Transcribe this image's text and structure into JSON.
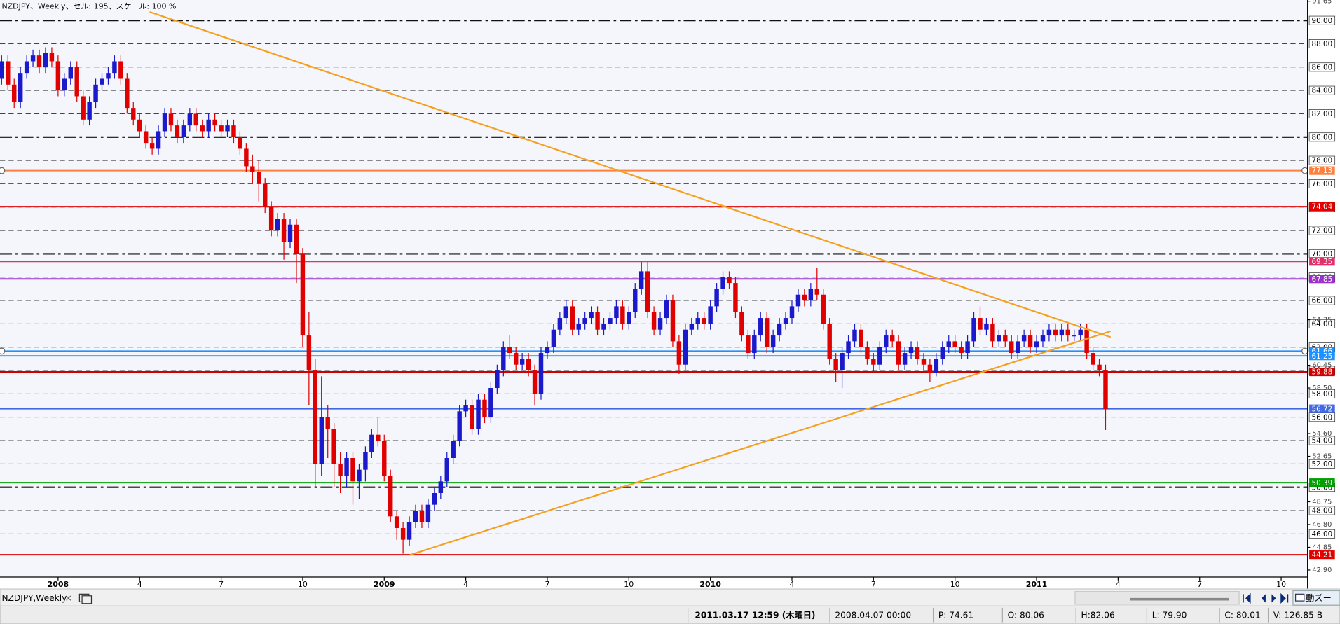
{
  "chart_data": {
    "type": "candlestick",
    "caption": "NZDJPY、Weekly、セル: 195、スケール: 100 %",
    "up_color": "#1a1acc",
    "down_color": "#e00000",
    "xlim": [
      -9.26,
      199.2
    ],
    "ylim": [
      42.3,
      91.75
    ],
    "xticks": [
      {
        "value": 0,
        "label": "2008"
      },
      {
        "value": 13,
        "label": "4"
      },
      {
        "value": 26,
        "label": "7"
      },
      {
        "value": 39,
        "label": "10"
      },
      {
        "value": 52,
        "label": "2009"
      },
      {
        "value": 65,
        "label": "4"
      },
      {
        "value": 78,
        "label": "7"
      },
      {
        "value": 91,
        "label": "10"
      },
      {
        "value": 104,
        "label": "2010"
      },
      {
        "value": 117,
        "label": "4"
      },
      {
        "value": 130,
        "label": "7"
      },
      {
        "value": 143,
        "label": "10"
      },
      {
        "value": 156,
        "label": "2011"
      },
      {
        "value": 169,
        "label": "4"
      },
      {
        "value": 182,
        "label": "7"
      },
      {
        "value": 195,
        "label": "10"
      }
    ],
    "yticks": [
      {
        "value": 46,
        "label": "46.00"
      },
      {
        "value": 48,
        "label": "48.00"
      },
      {
        "value": 50,
        "label": "50.00"
      },
      {
        "value": 52,
        "label": "52.00"
      },
      {
        "value": 54,
        "label": "54.00"
      },
      {
        "value": 56,
        "label": "56.00"
      },
      {
        "value": 58,
        "label": "58.00"
      },
      {
        "value": 60,
        "label": "60.00"
      },
      {
        "value": 62,
        "label": "62.00"
      },
      {
        "value": 64,
        "label": "64.00"
      },
      {
        "value": 66,
        "label": "66.00"
      },
      {
        "value": 68,
        "label": "68.00"
      },
      {
        "value": 70,
        "label": "70.00"
      },
      {
        "value": 72,
        "label": "72.00"
      },
      {
        "value": 74,
        "label": "74.00"
      },
      {
        "value": 76,
        "label": "76.00"
      },
      {
        "value": 78,
        "label": "78.00"
      },
      {
        "value": 80,
        "label": "80.00"
      },
      {
        "value": 82,
        "label": "82.00"
      },
      {
        "value": 84,
        "label": "84.00"
      },
      {
        "value": 86,
        "label": "86.00"
      },
      {
        "value": 88,
        "label": "88.00"
      },
      {
        "value": 90,
        "label": "90.00"
      }
    ],
    "minor_yticks": [
      91.65,
      64.35,
      60.45,
      {
        "value": 58.5,
        "label": "58.50"
      },
      {
        "value": 54.6,
        "label": "54.60"
      },
      52.65,
      48.75,
      {
        "value": 46.8,
        "label": "46.80"
      },
      44.85,
      {
        "value": 42.9,
        "label": "42.90"
      }
    ],
    "major_levels": [
      50,
      70,
      80,
      90
    ],
    "grid": true,
    "hlines": [
      {
        "value": 77.13,
        "color": "#ff7f3f",
        "handles": true
      },
      {
        "value": 74.04,
        "color": "#e00000"
      },
      {
        "value": 69.35,
        "color": "#e0306a"
      },
      {
        "value": 67.85,
        "color": "#9932cc"
      },
      {
        "value": 61.66,
        "color": "#1e90ff",
        "handles": true
      },
      {
        "value": 61.25,
        "color": "#1e90ff"
      },
      {
        "value": 59.88,
        "color": "#d00000"
      },
      {
        "value": 56.72,
        "color": "#4169e1"
      },
      {
        "value": 50.39,
        "color": "#00a000"
      },
      {
        "value": 44.21,
        "color": "#e00000"
      }
    ],
    "trendlines": [
      {
        "color": "#f5a020",
        "x": [
          14.6,
          167.8
        ],
        "y": [
          90.73,
          62.86
        ]
      },
      {
        "color": "#f5a020",
        "x": [
          56.1,
          167.8
        ],
        "y": [
          44.2,
          63.37
        ]
      }
    ],
    "x": [
      -9,
      -8,
      -7,
      -6,
      -5,
      -4,
      -3,
      -2,
      -1,
      0,
      1,
      2,
      3,
      4,
      5,
      6,
      7,
      8,
      9,
      10,
      11,
      12,
      13,
      14,
      15,
      16,
      17,
      18,
      19,
      20,
      21,
      22,
      23,
      24,
      25,
      26,
      27,
      28,
      29,
      30,
      31,
      32,
      33,
      34,
      35,
      36,
      37,
      38,
      39,
      40,
      41,
      42,
      43,
      44,
      45,
      46,
      47,
      48,
      49,
      50,
      51,
      52,
      53,
      54,
      55,
      56,
      57,
      58,
      59,
      60,
      61,
      62,
      63,
      64,
      65,
      66,
      67,
      68,
      69,
      70,
      71,
      72,
      73,
      74,
      75,
      76,
      77,
      78,
      79,
      80,
      81,
      82,
      83,
      84,
      85,
      86,
      87,
      88,
      89,
      90,
      91,
      92,
      93,
      94,
      95,
      96,
      97,
      98,
      99,
      100,
      101,
      102,
      103,
      104,
      105,
      106,
      107,
      108,
      109,
      110,
      111,
      112,
      113,
      114,
      115,
      116,
      117,
      118,
      119,
      120,
      121,
      122,
      123,
      124,
      125,
      126,
      127,
      128,
      129,
      130,
      131,
      132,
      133,
      134,
      135,
      136,
      137,
      138,
      139,
      140,
      141,
      142,
      143,
      144,
      145,
      146,
      147,
      148,
      149,
      150,
      151,
      152,
      153,
      154,
      155,
      156,
      157,
      158,
      159,
      160,
      161,
      162,
      163,
      164,
      165,
      166,
      167
    ],
    "open": [
      85.0,
      86.5,
      84.5,
      83.0,
      85.5,
      86.5,
      87.0,
      86.0,
      87.2,
      86.5,
      84.0,
      85.0,
      86.0,
      83.5,
      81.5,
      83.0,
      84.5,
      85.0,
      85.5,
      86.5,
      85.0,
      82.5,
      81.5,
      80.5,
      79.5,
      79.0,
      80.5,
      82.0,
      81.0,
      80.0,
      81.0,
      82.0,
      81.0,
      80.5,
      81.5,
      81.0,
      80.5,
      81.0,
      80.0,
      79.0,
      77.5,
      77.0,
      76.0,
      74.0,
      72.0,
      73.0,
      71.0,
      72.5,
      70.0,
      63.0,
      60.0,
      52.0,
      56.0,
      55.0,
      52.0,
      51.0,
      52.5,
      50.5,
      51.5,
      53.0,
      54.5,
      54.0,
      51.0,
      47.5,
      46.5,
      45.5,
      47.0,
      48.0,
      47.0,
      48.5,
      49.5,
      50.5,
      52.5,
      54.0,
      56.5,
      57.0,
      55.0,
      57.5,
      56.0,
      58.5,
      60.0,
      62.0,
      61.5,
      60.5,
      61.0,
      60.0,
      58.0,
      61.5,
      62.0,
      63.5,
      64.5,
      65.5,
      63.5,
      64.0,
      64.5,
      65.0,
      63.5,
      64.0,
      64.5,
      65.5,
      64.0,
      65.0,
      67.0,
      68.5,
      65.0,
      63.5,
      64.5,
      66.0,
      62.5,
      60.5,
      63.5,
      64.0,
      64.5,
      64.0,
      65.5,
      67.0,
      68.0,
      67.5,
      65.0,
      63.0,
      61.5,
      63.0,
      64.5,
      62.0,
      63.0,
      64.0,
      64.5,
      65.5,
      66.5,
      66.0,
      67.0,
      66.5,
      64.0,
      61.0,
      60.0,
      61.5,
      62.5,
      63.5,
      62.0,
      61.0,
      60.5,
      62.0,
      63.0,
      62.5,
      60.5,
      61.5,
      62.0,
      61.0,
      60.5,
      59.8,
      61.0,
      62.0,
      62.5,
      62.0,
      61.5,
      62.5,
      64.5,
      63.5,
      64.0,
      62.5,
      63.0,
      62.5,
      61.5,
      62.5,
      63.0,
      62.0,
      62.5,
      63.0,
      63.5,
      63.0,
      63.5,
      63.0,
      63.0,
      63.5,
      61.5,
      60.5,
      60.0
    ],
    "high": [
      87.0,
      87.0,
      85.0,
      86.0,
      87.0,
      87.5,
      87.5,
      87.7,
      87.7,
      87.0,
      85.5,
      86.5,
      86.5,
      84.0,
      83.5,
      85.0,
      85.5,
      86.0,
      87.0,
      87.0,
      85.5,
      83.0,
      82.0,
      81.0,
      80.0,
      81.0,
      82.5,
      82.5,
      81.5,
      81.5,
      82.5,
      82.5,
      81.5,
      82.0,
      82.0,
      81.5,
      81.5,
      81.5,
      80.5,
      79.5,
      78.5,
      78.0,
      76.5,
      74.5,
      73.5,
      73.5,
      73.0,
      73.0,
      70.5,
      65.0,
      61.0,
      59.5,
      57.0,
      55.5,
      53.0,
      53.0,
      53.0,
      52.0,
      53.5,
      55.0,
      56.0,
      54.5,
      51.5,
      48.0,
      47.0,
      47.5,
      48.5,
      48.5,
      49.0,
      50.0,
      51.0,
      53.0,
      54.5,
      57.0,
      57.5,
      57.5,
      58.0,
      58.0,
      59.0,
      60.5,
      62.5,
      63.0,
      62.0,
      61.5,
      61.5,
      60.5,
      62.0,
      62.5,
      64.0,
      65.0,
      66.0,
      66.0,
      64.5,
      65.0,
      65.5,
      65.5,
      64.5,
      65.0,
      66.0,
      66.0,
      65.5,
      67.5,
      69.3,
      69.3,
      65.5,
      65.0,
      66.5,
      66.5,
      63.0,
      64.0,
      64.5,
      65.0,
      65.0,
      66.0,
      67.5,
      68.5,
      68.5,
      68.0,
      65.5,
      63.5,
      63.5,
      65.0,
      65.0,
      63.5,
      64.5,
      65.0,
      66.0,
      67.0,
      67.0,
      67.5,
      68.8,
      67.0,
      64.5,
      61.5,
      62.0,
      63.0,
      64.0,
      64.0,
      62.5,
      61.5,
      62.5,
      63.5,
      63.5,
      63.0,
      62.0,
      62.5,
      62.5,
      61.5,
      61.0,
      61.5,
      62.5,
      63.0,
      63.0,
      62.5,
      63.0,
      65.0,
      65.5,
      64.5,
      64.5,
      63.5,
      63.5,
      63.0,
      63.0,
      63.5,
      63.5,
      63.0,
      63.5,
      64.0,
      64.0,
      64.0,
      64.0,
      63.5,
      64.0,
      64.0,
      62.0,
      61.0,
      60.5
    ],
    "low": [
      84.5,
      84.0,
      82.5,
      82.5,
      85.0,
      86.0,
      85.5,
      85.5,
      86.0,
      83.5,
      83.5,
      84.5,
      83.0,
      81.0,
      81.0,
      82.5,
      84.0,
      84.5,
      85.0,
      84.5,
      82.0,
      81.0,
      80.0,
      79.0,
      78.5,
      78.5,
      80.0,
      80.5,
      79.5,
      79.5,
      80.5,
      80.5,
      80.0,
      80.0,
      80.5,
      80.0,
      80.0,
      79.5,
      78.5,
      77.0,
      76.0,
      74.5,
      73.5,
      71.5,
      71.5,
      69.5,
      70.5,
      67.5,
      62.0,
      57.0,
      50.0,
      51.0,
      52.5,
      50.0,
      49.5,
      50.0,
      48.5,
      49.0,
      50.5,
      52.5,
      53.5,
      50.5,
      47.0,
      45.5,
      44.3,
      45.0,
      46.5,
      46.5,
      46.5,
      48.0,
      49.0,
      50.0,
      52.0,
      53.5,
      56.0,
      54.5,
      54.5,
      55.5,
      55.5,
      58.0,
      59.5,
      61.0,
      60.0,
      60.0,
      59.5,
      57.0,
      57.5,
      61.0,
      61.5,
      63.0,
      64.0,
      63.0,
      63.0,
      63.5,
      64.0,
      63.0,
      63.0,
      63.5,
      64.0,
      63.5,
      63.5,
      64.5,
      66.5,
      64.5,
      63.0,
      63.0,
      64.0,
      62.0,
      59.7,
      60.0,
      63.0,
      63.5,
      63.5,
      63.5,
      65.0,
      66.5,
      67.0,
      64.5,
      62.5,
      61.0,
      61.0,
      62.5,
      61.5,
      61.5,
      62.5,
      63.5,
      64.0,
      65.0,
      65.5,
      65.5,
      66.0,
      63.5,
      60.5,
      59.0,
      58.5,
      61.0,
      62.0,
      61.5,
      60.5,
      59.8,
      60.0,
      61.5,
      62.0,
      60.0,
      60.0,
      61.0,
      60.5,
      60.0,
      59.0,
      59.5,
      60.5,
      61.5,
      61.5,
      61.0,
      61.0,
      62.0,
      63.0,
      63.0,
      62.0,
      62.0,
      62.0,
      61.0,
      61.0,
      62.0,
      61.5,
      61.5,
      62.0,
      62.5,
      62.5,
      62.5,
      62.5,
      62.5,
      62.5,
      61.0,
      60.0,
      59.5,
      54.9
    ],
    "close": [
      86.5,
      84.5,
      83.0,
      85.5,
      86.5,
      87.0,
      86.0,
      87.2,
      86.5,
      84.0,
      85.0,
      86.0,
      83.5,
      81.5,
      83.0,
      84.5,
      85.0,
      85.5,
      86.5,
      85.0,
      82.5,
      81.5,
      80.5,
      79.5,
      79.0,
      80.5,
      82.0,
      81.0,
      80.0,
      81.0,
      82.0,
      81.0,
      80.5,
      81.5,
      81.0,
      80.5,
      81.0,
      80.0,
      79.0,
      77.5,
      77.0,
      76.0,
      74.0,
      72.0,
      73.0,
      71.0,
      72.5,
      70.0,
      63.0,
      60.0,
      52.0,
      56.0,
      55.0,
      52.0,
      51.0,
      52.5,
      50.5,
      51.5,
      53.0,
      54.5,
      54.0,
      51.0,
      47.5,
      46.5,
      45.5,
      47.0,
      48.0,
      47.0,
      48.5,
      49.5,
      50.5,
      52.5,
      54.0,
      56.5,
      57.0,
      55.0,
      57.5,
      56.0,
      58.5,
      60.0,
      62.0,
      61.5,
      60.5,
      61.0,
      60.0,
      58.0,
      61.5,
      62.0,
      63.5,
      64.5,
      65.5,
      63.5,
      64.0,
      64.5,
      65.0,
      63.5,
      64.0,
      64.5,
      65.5,
      64.0,
      65.0,
      67.0,
      68.5,
      65.0,
      63.5,
      64.5,
      66.0,
      62.5,
      60.5,
      63.5,
      64.0,
      64.5,
      64.0,
      65.5,
      67.0,
      68.0,
      67.5,
      65.0,
      63.0,
      61.5,
      63.0,
      64.5,
      62.0,
      63.0,
      64.0,
      64.5,
      65.5,
      66.5,
      66.0,
      67.0,
      66.5,
      64.0,
      61.0,
      60.0,
      61.5,
      62.5,
      63.5,
      62.0,
      61.0,
      60.5,
      62.0,
      63.0,
      62.5,
      60.5,
      61.5,
      62.0,
      61.0,
      60.5,
      59.8,
      61.0,
      62.0,
      62.5,
      62.0,
      61.5,
      62.5,
      64.5,
      63.5,
      64.0,
      62.5,
      63.0,
      62.5,
      61.5,
      62.5,
      63.0,
      62.0,
      62.5,
      63.0,
      63.5,
      63.0,
      63.5,
      63.0,
      63.0,
      63.5,
      61.5,
      60.5,
      60.0,
      56.7
    ]
  },
  "tab": {
    "label": "NZDJPY,Weekly",
    "close": "×"
  },
  "zoom_button": "動ズー",
  "status_bar": [
    "2011.03.17 12:59 (木曜日)",
    "2008.04.07 00:00",
    "P: 74.61",
    "O: 80.06",
    "H:82.06",
    "L: 79.90",
    "C: 80.01",
    "V: 126.85 B"
  ]
}
